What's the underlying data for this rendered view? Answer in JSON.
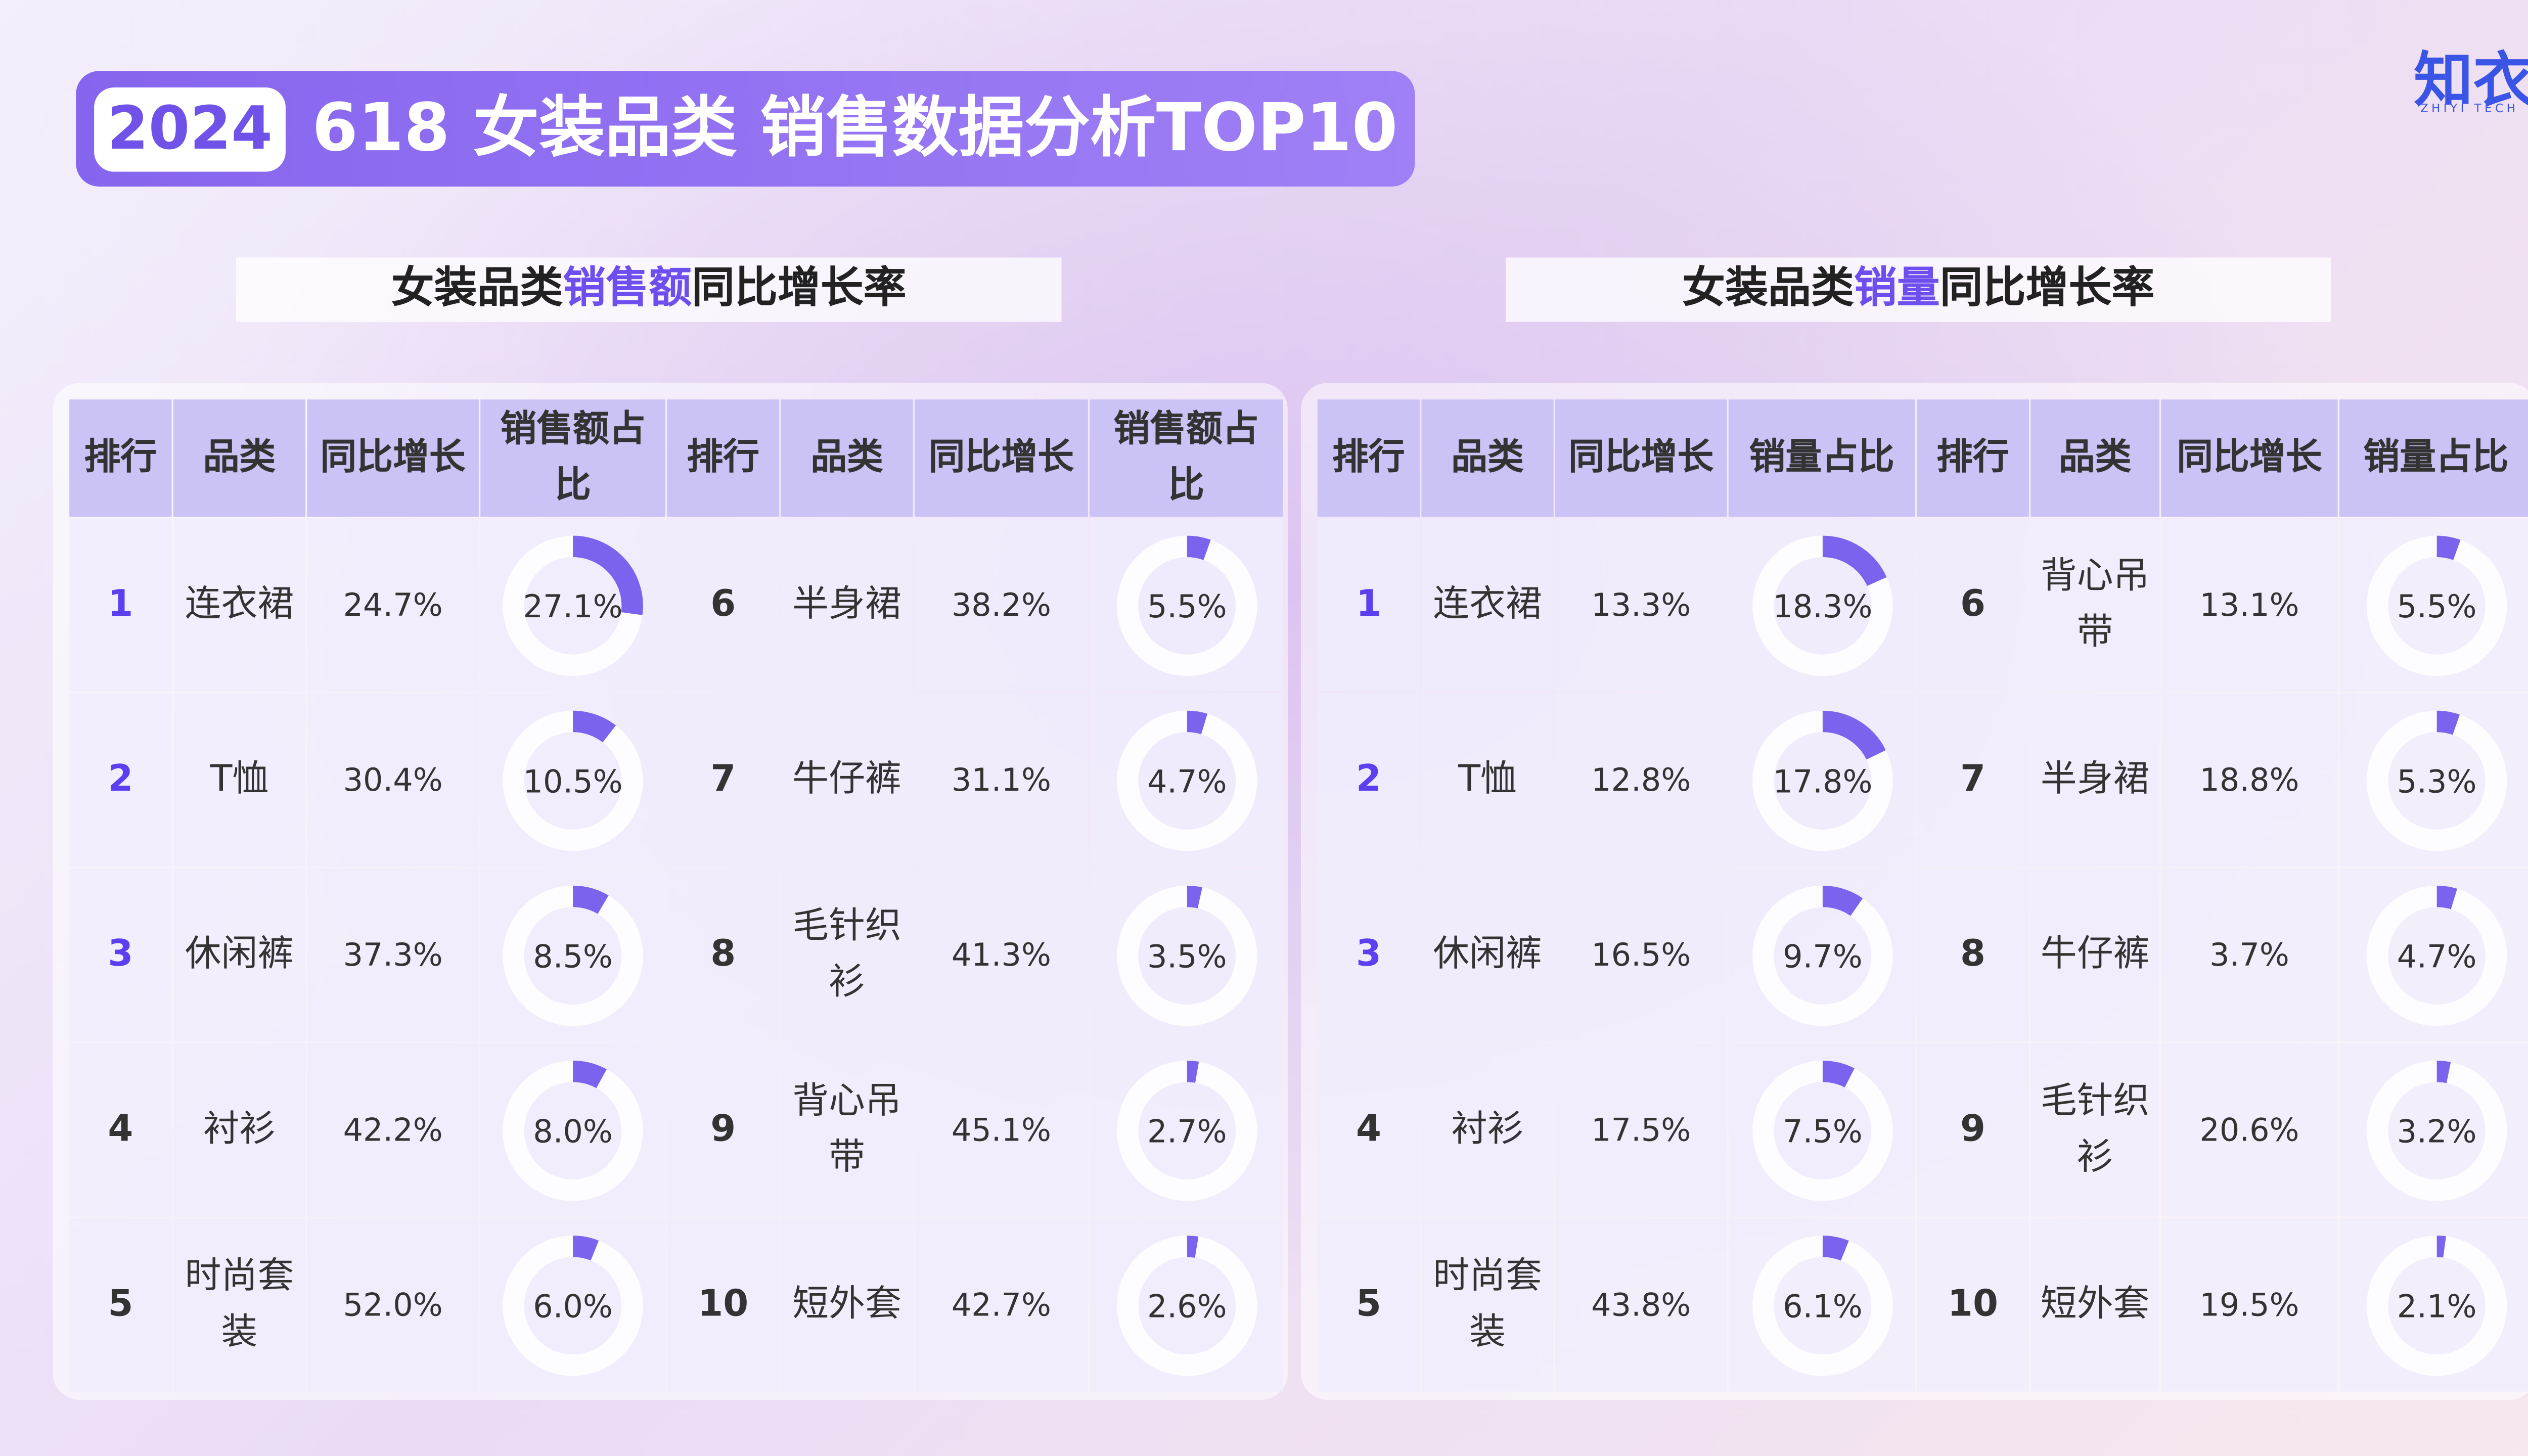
{
  "header": {
    "year": "2024",
    "title": "618 女装品类 销售数据分析TOP10",
    "logo": "知衣",
    "logo_sub": "ZHIYI TECH"
  },
  "tables": [
    {
      "subtitle": [
        "女装品类",
        "销售额",
        "同比增长率"
      ],
      "columns": [
        "排行",
        "品类",
        "同比增长",
        "销售额占比"
      ],
      "rows": [
        {
          "rank": "1",
          "category": "连衣裙",
          "growth": "24.7%",
          "share": {
            "value": 27.1,
            "label": "27.1%"
          }
        },
        {
          "rank": "2",
          "category": "T恤",
          "growth": "30.4%",
          "share": {
            "value": 10.5,
            "label": "10.5%"
          }
        },
        {
          "rank": "3",
          "category": "休闲裤",
          "growth": "37.3%",
          "share": {
            "value": 8.5,
            "label": "8.5%"
          }
        },
        {
          "rank": "4",
          "category": "衬衫",
          "growth": "42.2%",
          "share": {
            "value": 8,
            "label": "8.0%"
          }
        },
        {
          "rank": "5",
          "category": "时尚套装",
          "growth": "52.0%",
          "share": {
            "value": 6,
            "label": "6.0%"
          }
        },
        {
          "rank": "6",
          "category": "半身裙",
          "growth": "38.2%",
          "share": {
            "value": 5.5,
            "label": "5.5%"
          }
        },
        {
          "rank": "7",
          "category": "牛仔裤",
          "growth": "31.1%",
          "share": {
            "value": 4.7,
            "label": "4.7%"
          }
        },
        {
          "rank": "8",
          "category": "毛针织衫",
          "growth": "41.3%",
          "share": {
            "value": 3.5,
            "label": "3.5%"
          }
        },
        {
          "rank": "9",
          "category": "背心吊带",
          "growth": "45.1%",
          "share": {
            "value": 2.7,
            "label": "2.7%"
          }
        },
        {
          "rank": "10",
          "category": "短外套",
          "growth": "42.7%",
          "share": {
            "value": 2.6,
            "label": "2.6%"
          }
        }
      ]
    },
    {
      "subtitle": [
        "女装品类",
        "销量",
        "同比增长率"
      ],
      "columns": [
        "排行",
        "品类",
        "同比增长",
        "销量占比"
      ],
      "rows": [
        {
          "rank": "1",
          "category": "连衣裙",
          "growth": "13.3%",
          "share": {
            "value": 18.3,
            "label": "18.3%"
          }
        },
        {
          "rank": "2",
          "category": "T恤",
          "growth": "12.8%",
          "share": {
            "value": 17.8,
            "label": "17.8%"
          }
        },
        {
          "rank": "3",
          "category": "休闲裤",
          "growth": "16.5%",
          "share": {
            "value": 9.7,
            "label": "9.7%"
          }
        },
        {
          "rank": "4",
          "category": "衬衫",
          "growth": "17.5%",
          "share": {
            "value": 7.5,
            "label": "7.5%"
          }
        },
        {
          "rank": "5",
          "category": "时尚套装",
          "growth": "43.8%",
          "share": {
            "value": 6.1,
            "label": "6.1%"
          }
        },
        {
          "rank": "6",
          "category": "背心吊带",
          "growth": "13.1%",
          "share": {
            "value": 5.5,
            "label": "5.5%"
          }
        },
        {
          "rank": "7",
          "category": "半身裙",
          "growth": "18.8%",
          "share": {
            "value": 5.3,
            "label": "5.3%"
          }
        },
        {
          "rank": "8",
          "category": "牛仔裤",
          "growth": "3.7%",
          "share": {
            "value": 4.7,
            "label": "4.7%"
          }
        },
        {
          "rank": "9",
          "category": "毛针织衫",
          "growth": "20.6%",
          "share": {
            "value": 3.2,
            "label": "3.2%"
          }
        },
        {
          "rank": "10",
          "category": "短外套",
          "growth": "19.5%",
          "share": {
            "value": 2.1,
            "label": "2.1%"
          }
        }
      ]
    }
  ]
}
